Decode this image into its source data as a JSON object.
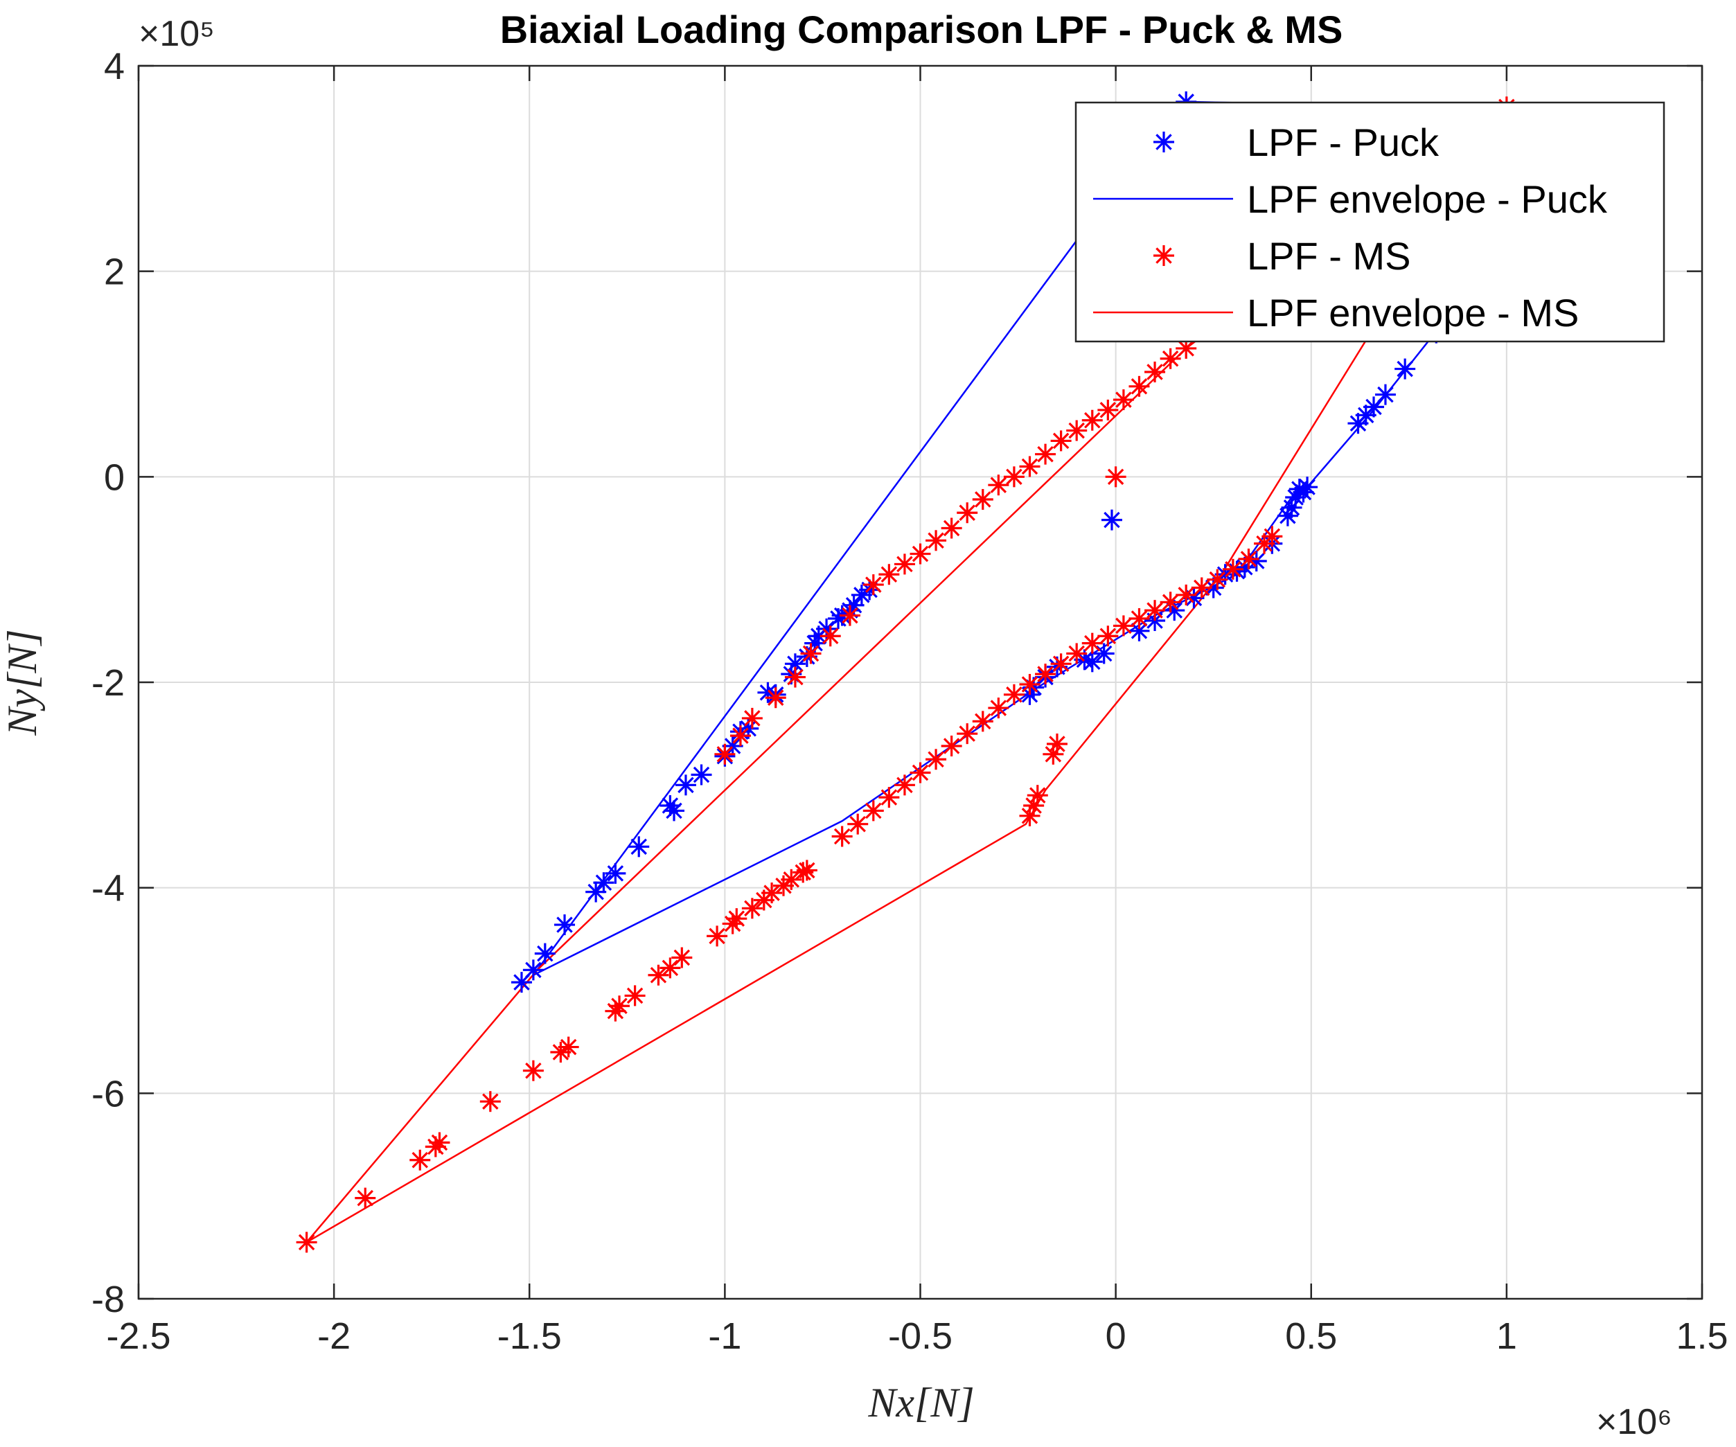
{
  "chart_data": {
    "type": "scatter",
    "title": "Biaxial Loading Comparison LPF - Puck & MS",
    "xlabel": "Nx[N]",
    "ylabel": "Ny[N]",
    "x_exponent_label": "×10⁶",
    "y_exponent_label": "×10⁵",
    "x_scale": 1000000,
    "y_scale": 100000,
    "xlim": [
      -2.5,
      1.5
    ],
    "ylim": [
      -8,
      4
    ],
    "xticks": [
      -2.5,
      -2,
      -1.5,
      -1,
      -0.5,
      0,
      0.5,
      1,
      1.5
    ],
    "yticks": [
      -8,
      -6,
      -4,
      -2,
      0,
      2,
      4
    ],
    "xtick_labels": [
      "-2.5",
      "-2",
      "-1.5",
      "-1",
      "-0.5",
      "0",
      "0.5",
      "1",
      "1.5"
    ],
    "ytick_labels": [
      "-8",
      "-6",
      "-4",
      "-2",
      "0",
      "2",
      "4"
    ],
    "grid": true,
    "legend_position": "top-right",
    "legend": [
      {
        "label": "LPF - Puck",
        "kind": "marker",
        "color": "#0000ff"
      },
      {
        "label": "LPF envelope - Puck",
        "kind": "line",
        "color": "#0000ff"
      },
      {
        "label": "LPF - MS",
        "kind": "marker",
        "color": "#ff0000"
      },
      {
        "label": "LPF envelope - MS",
        "kind": "line",
        "color": "#ff0000"
      }
    ],
    "series": [
      {
        "name": "LPF - Puck",
        "kind": "scatter",
        "color": "#0000ff",
        "points": [
          [
            -1.52,
            -4.92
          ],
          [
            -1.49,
            -4.8
          ],
          [
            -1.46,
            -4.64
          ],
          [
            -1.41,
            -4.36
          ],
          [
            -1.33,
            -4.04
          ],
          [
            -1.31,
            -3.95
          ],
          [
            -1.28,
            -3.86
          ],
          [
            -1.22,
            -3.6
          ],
          [
            -1.14,
            -3.2
          ],
          [
            -1.13,
            -3.25
          ],
          [
            -1.1,
            -3.0
          ],
          [
            -1.06,
            -2.9
          ],
          [
            -1.0,
            -2.72
          ],
          [
            -0.98,
            -2.62
          ],
          [
            -0.96,
            -2.48
          ],
          [
            -0.94,
            -2.45
          ],
          [
            -0.89,
            -2.1
          ],
          [
            -0.87,
            -2.12
          ],
          [
            -0.83,
            -1.92
          ],
          [
            -0.82,
            -1.82
          ],
          [
            -0.79,
            -1.75
          ],
          [
            -0.77,
            -1.62
          ],
          [
            -0.76,
            -1.55
          ],
          [
            -0.74,
            -1.48
          ],
          [
            -0.71,
            -1.38
          ],
          [
            -0.7,
            -1.35
          ],
          [
            -0.68,
            -1.3
          ],
          [
            -0.67,
            -1.25
          ],
          [
            -0.65,
            -1.15
          ],
          [
            -0.63,
            -1.1
          ],
          [
            -0.22,
            -2.12
          ],
          [
            -0.21,
            -2.05
          ],
          [
            -0.18,
            -1.95
          ],
          [
            -0.15,
            -1.85
          ],
          [
            -0.08,
            -1.78
          ],
          [
            -0.06,
            -1.8
          ],
          [
            -0.03,
            -1.72
          ],
          [
            -0.01,
            -0.42
          ],
          [
            0.06,
            -1.5
          ],
          [
            0.1,
            -1.4
          ],
          [
            0.15,
            -1.3
          ],
          [
            0.2,
            -1.18
          ],
          [
            0.25,
            -1.08
          ],
          [
            0.28,
            -0.95
          ],
          [
            0.31,
            -0.92
          ],
          [
            0.33,
            -0.88
          ],
          [
            0.36,
            -0.82
          ],
          [
            0.4,
            -0.65
          ],
          [
            0.44,
            -0.38
          ],
          [
            0.45,
            -0.3
          ],
          [
            0.46,
            -0.2
          ],
          [
            0.47,
            -0.12
          ],
          [
            0.48,
            -0.15
          ],
          [
            0.49,
            -0.1
          ],
          [
            0.62,
            0.52
          ],
          [
            0.64,
            0.6
          ],
          [
            0.66,
            0.68
          ],
          [
            0.69,
            0.8
          ],
          [
            0.74,
            1.05
          ],
          [
            0.82,
            1.4
          ],
          [
            0.18,
            3.65
          ]
        ]
      },
      {
        "name": "LPF envelope - Puck",
        "kind": "line",
        "color": "#0000ff",
        "points": [
          [
            -1.49,
            -4.85
          ],
          [
            -0.7,
            -3.35
          ],
          [
            -0.2,
            -2.05
          ],
          [
            0.1,
            -1.35
          ],
          [
            0.31,
            -0.95
          ],
          [
            0.45,
            -0.2
          ],
          [
            0.49,
            -0.1
          ],
          [
            0.66,
            0.65
          ],
          [
            0.9,
            1.8
          ],
          [
            0.98,
            2.9
          ],
          [
            0.82,
            3.6
          ],
          [
            0.18,
            3.65
          ],
          [
            -0.1,
            2.3
          ],
          [
            -1.49,
            -4.85
          ]
        ]
      },
      {
        "name": "LPF - MS",
        "kind": "scatter",
        "color": "#ff0000",
        "points": [
          [
            -2.07,
            -7.45
          ],
          [
            -1.92,
            -7.02
          ],
          [
            -1.78,
            -6.65
          ],
          [
            -1.74,
            -6.52
          ],
          [
            -1.73,
            -6.48
          ],
          [
            -1.6,
            -6.08
          ],
          [
            -1.49,
            -5.78
          ],
          [
            -1.42,
            -5.6
          ],
          [
            -1.4,
            -5.55
          ],
          [
            -1.28,
            -5.2
          ],
          [
            -1.27,
            -5.15
          ],
          [
            -1.23,
            -5.05
          ],
          [
            -1.17,
            -4.85
          ],
          [
            -1.14,
            -4.78
          ],
          [
            -1.11,
            -4.68
          ],
          [
            -1.02,
            -4.47
          ],
          [
            -0.98,
            -4.35
          ],
          [
            -0.97,
            -4.3
          ],
          [
            -0.93,
            -4.2
          ],
          [
            -0.9,
            -4.12
          ],
          [
            -0.88,
            -4.05
          ],
          [
            -0.85,
            -3.98
          ],
          [
            -0.83,
            -3.92
          ],
          [
            -0.8,
            -3.85
          ],
          [
            -0.79,
            -3.83
          ],
          [
            -0.7,
            -3.5
          ],
          [
            -0.66,
            -3.38
          ],
          [
            -0.62,
            -3.25
          ],
          [
            -0.58,
            -3.12
          ],
          [
            -0.54,
            -3.0
          ],
          [
            -0.5,
            -2.88
          ],
          [
            -0.46,
            -2.75
          ],
          [
            -0.42,
            -2.62
          ],
          [
            -0.38,
            -2.5
          ],
          [
            -0.34,
            -2.38
          ],
          [
            -0.3,
            -2.25
          ],
          [
            -0.26,
            -2.12
          ],
          [
            -0.22,
            -2.02
          ],
          [
            -0.18,
            -1.92
          ],
          [
            -0.14,
            -1.82
          ],
          [
            -0.1,
            -1.72
          ],
          [
            -0.06,
            -1.62
          ],
          [
            -0.02,
            -1.55
          ],
          [
            0.02,
            -1.45
          ],
          [
            0.06,
            -1.38
          ],
          [
            0.1,
            -1.3
          ],
          [
            0.14,
            -1.22
          ],
          [
            0.18,
            -1.15
          ],
          [
            0.22,
            -1.08
          ],
          [
            0.26,
            -1.0
          ],
          [
            0.3,
            -0.9
          ],
          [
            0.34,
            -0.8
          ],
          [
            0.38,
            -0.65
          ],
          [
            0.4,
            -0.58
          ],
          [
            -1.0,
            -2.7
          ],
          [
            -0.96,
            -2.52
          ],
          [
            -0.93,
            -2.35
          ],
          [
            -0.87,
            -2.15
          ],
          [
            -0.82,
            -1.95
          ],
          [
            -0.78,
            -1.72
          ],
          [
            -0.73,
            -1.55
          ],
          [
            -0.68,
            -1.35
          ],
          [
            -0.62,
            -1.05
          ],
          [
            -0.58,
            -0.95
          ],
          [
            -0.54,
            -0.85
          ],
          [
            -0.5,
            -0.75
          ],
          [
            -0.46,
            -0.62
          ],
          [
            -0.42,
            -0.5
          ],
          [
            -0.38,
            -0.35
          ],
          [
            -0.34,
            -0.22
          ],
          [
            -0.3,
            -0.08
          ],
          [
            -0.26,
            0.0
          ],
          [
            -0.22,
            0.1
          ],
          [
            -0.18,
            0.22
          ],
          [
            -0.14,
            0.35
          ],
          [
            -0.1,
            0.45
          ],
          [
            -0.06,
            0.55
          ],
          [
            -0.02,
            0.65
          ],
          [
            0.02,
            0.75
          ],
          [
            0.06,
            0.88
          ],
          [
            0.1,
            1.02
          ],
          [
            0.14,
            1.15
          ],
          [
            0.18,
            1.25
          ],
          [
            -0.22,
            -3.3
          ],
          [
            -0.21,
            -3.2
          ],
          [
            -0.2,
            -3.1
          ],
          [
            -0.16,
            -2.7
          ],
          [
            -0.15,
            -2.6
          ],
          [
            0.0,
            0.0
          ],
          [
            1.0,
            3.6
          ]
        ]
      },
      {
        "name": "LPF envelope - MS",
        "kind": "line",
        "color": "#ff0000",
        "points": [
          [
            -2.07,
            -7.45
          ],
          [
            -0.23,
            -3.38
          ],
          [
            -0.18,
            -3.05
          ],
          [
            0.27,
            -0.95
          ],
          [
            0.66,
            1.45
          ],
          [
            1.0,
            3.6
          ],
          [
            0.18,
            1.25
          ],
          [
            -1.48,
            -4.8
          ],
          [
            -2.07,
            -7.45
          ]
        ]
      }
    ]
  }
}
